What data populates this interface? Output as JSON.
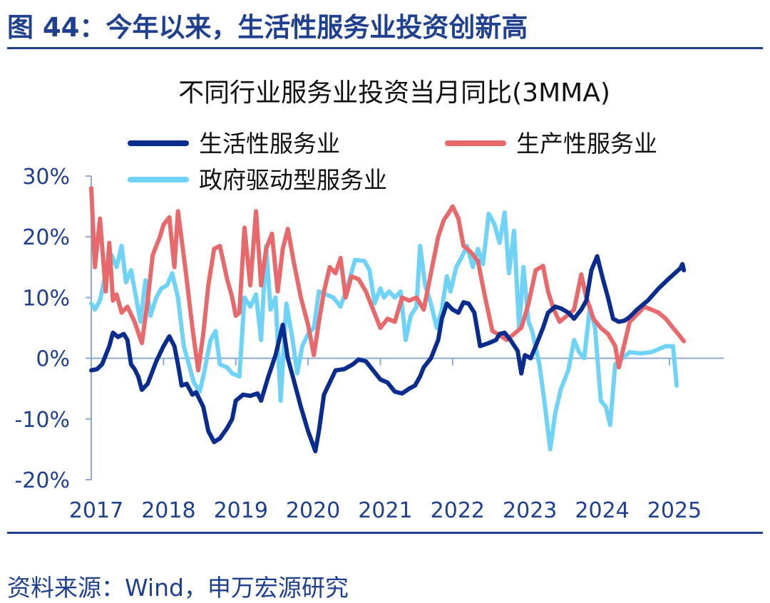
{
  "figure_title": "图 44：今年以来，生活性服务业投资创新高",
  "source": "资料来源：Wind，申万宏源研究",
  "chart_data": {
    "type": "line",
    "title": "不同行业服务业投资当月同比(3MMA)",
    "ylabel": "",
    "xlabel": "",
    "ylim": [
      -20,
      30
    ],
    "yticks": [
      30,
      20,
      10,
      0,
      -10,
      -20
    ],
    "ytick_labels": [
      "30%",
      "20%",
      "10%",
      "0%",
      "-10%",
      "-20%"
    ],
    "x_range": [
      2017,
      2025.75
    ],
    "xticks": [
      2017,
      2018,
      2019,
      2020,
      2021,
      2022,
      2023,
      2024,
      2025
    ],
    "xtick_labels": [
      "2017",
      "2018",
      "2019",
      "2020",
      "2021",
      "2022",
      "2023",
      "2024",
      "2025"
    ],
    "legend_position": "top",
    "grid": false,
    "series": [
      {
        "name": "生活性服务业",
        "color": "#0b2c8f",
        "points": [
          [
            2017.0,
            -2
          ],
          [
            2017.08,
            -1.8
          ],
          [
            2017.15,
            -1
          ],
          [
            2017.25,
            2
          ],
          [
            2017.3,
            4.2
          ],
          [
            2017.37,
            3.5
          ],
          [
            2017.45,
            4
          ],
          [
            2017.5,
            3
          ],
          [
            2017.55,
            -1
          ],
          [
            2017.6,
            -1.8
          ],
          [
            2017.65,
            -3
          ],
          [
            2017.7,
            -5.2
          ],
          [
            2017.78,
            -4.2
          ],
          [
            2017.9,
            -0.5
          ],
          [
            2018.0,
            2
          ],
          [
            2018.08,
            3.6
          ],
          [
            2018.15,
            2
          ],
          [
            2018.2,
            -1
          ],
          [
            2018.25,
            -4.5
          ],
          [
            2018.32,
            -4.2
          ],
          [
            2018.4,
            -6
          ],
          [
            2018.45,
            -5.6
          ],
          [
            2018.55,
            -8
          ],
          [
            2018.62,
            -12
          ],
          [
            2018.7,
            -13.8
          ],
          [
            2018.78,
            -13.2
          ],
          [
            2018.88,
            -11.5
          ],
          [
            2018.95,
            -10
          ],
          [
            2019.0,
            -7
          ],
          [
            2019.1,
            -6
          ],
          [
            2019.2,
            -6.2
          ],
          [
            2019.3,
            -5.8
          ],
          [
            2019.35,
            -7
          ],
          [
            2019.45,
            -3
          ],
          [
            2019.55,
            0.5
          ],
          [
            2019.65,
            5.5
          ],
          [
            2019.72,
            0
          ],
          [
            2019.8,
            -3.5
          ],
          [
            2019.9,
            -8
          ],
          [
            2020.0,
            -12
          ],
          [
            2020.1,
            -15.3
          ],
          [
            2020.15,
            -12
          ],
          [
            2020.22,
            -6
          ],
          [
            2020.3,
            -4
          ],
          [
            2020.38,
            -2
          ],
          [
            2020.5,
            -1.8
          ],
          [
            2020.62,
            -1
          ],
          [
            2020.7,
            -0.2
          ],
          [
            2020.8,
            -0.5
          ],
          [
            2020.9,
            -2
          ],
          [
            2021.0,
            -3.5
          ],
          [
            2021.1,
            -4
          ],
          [
            2021.2,
            -5.5
          ],
          [
            2021.3,
            -5.8
          ],
          [
            2021.4,
            -5
          ],
          [
            2021.48,
            -4.5
          ],
          [
            2021.55,
            -3
          ],
          [
            2021.6,
            -1.5
          ],
          [
            2021.7,
            0
          ],
          [
            2021.8,
            3
          ],
          [
            2021.85,
            6.5
          ],
          [
            2021.92,
            9
          ],
          [
            2022.0,
            8
          ],
          [
            2022.08,
            7.5
          ],
          [
            2022.15,
            9.2
          ],
          [
            2022.22,
            9
          ],
          [
            2022.3,
            7.5
          ],
          [
            2022.38,
            2
          ],
          [
            2022.5,
            2.5
          ],
          [
            2022.6,
            3
          ],
          [
            2022.65,
            4
          ],
          [
            2022.72,
            4.2
          ],
          [
            2022.8,
            3
          ],
          [
            2022.9,
            1.2
          ],
          [
            2022.95,
            -2.5
          ],
          [
            2023.0,
            0.5
          ],
          [
            2023.08,
            0
          ],
          [
            2023.15,
            2
          ],
          [
            2023.25,
            5
          ],
          [
            2023.32,
            7.5
          ],
          [
            2023.42,
            8.5
          ],
          [
            2023.5,
            8.2
          ],
          [
            2023.6,
            7.5
          ],
          [
            2023.68,
            6.5
          ],
          [
            2023.78,
            8
          ],
          [
            2023.85,
            9.5
          ],
          [
            2023.92,
            14.5
          ],
          [
            2024.0,
            16.8
          ],
          [
            2024.08,
            13
          ],
          [
            2024.15,
            10
          ],
          [
            2024.22,
            6.5
          ],
          [
            2024.3,
            6
          ],
          [
            2024.38,
            6.2
          ],
          [
            2024.45,
            6.8
          ],
          [
            2024.55,
            8
          ],
          [
            2024.7,
            9.5
          ],
          [
            2024.85,
            11.5
          ],
          [
            2025.0,
            13.2
          ],
          [
            2025.15,
            14.8
          ],
          [
            2025.18,
            15.5
          ],
          [
            2025.2,
            14.5
          ]
        ]
      },
      {
        "name": "生产性服务业",
        "color": "#e8696b",
        "points": [
          [
            2017.0,
            28
          ],
          [
            2017.05,
            15
          ],
          [
            2017.12,
            23
          ],
          [
            2017.2,
            11
          ],
          [
            2017.25,
            19
          ],
          [
            2017.3,
            9.5
          ],
          [
            2017.35,
            10.5
          ],
          [
            2017.42,
            7.5
          ],
          [
            2017.5,
            8.5
          ],
          [
            2017.6,
            6
          ],
          [
            2017.7,
            2.5
          ],
          [
            2017.78,
            9.5
          ],
          [
            2017.85,
            17
          ],
          [
            2017.95,
            20
          ],
          [
            2018.0,
            22
          ],
          [
            2018.08,
            23.2
          ],
          [
            2018.15,
            15
          ],
          [
            2018.2,
            24.2
          ],
          [
            2018.3,
            15
          ],
          [
            2018.4,
            5
          ],
          [
            2018.48,
            -2
          ],
          [
            2018.55,
            4
          ],
          [
            2018.62,
            12
          ],
          [
            2018.7,
            18
          ],
          [
            2018.78,
            18.5
          ],
          [
            2018.88,
            13
          ],
          [
            2018.95,
            10
          ],
          [
            2019.0,
            7
          ],
          [
            2019.05,
            7.5
          ],
          [
            2019.12,
            21.5
          ],
          [
            2019.2,
            12
          ],
          [
            2019.28,
            24.2
          ],
          [
            2019.35,
            12
          ],
          [
            2019.42,
            18
          ],
          [
            2019.5,
            20.5
          ],
          [
            2019.58,
            11
          ],
          [
            2019.65,
            18
          ],
          [
            2019.72,
            21.3
          ],
          [
            2019.8,
            16
          ],
          [
            2019.9,
            10
          ],
          [
            2020.0,
            5.5
          ],
          [
            2020.08,
            0.5
          ],
          [
            2020.15,
            6
          ],
          [
            2020.22,
            11
          ],
          [
            2020.3,
            15
          ],
          [
            2020.38,
            14
          ],
          [
            2020.45,
            16.5
          ],
          [
            2020.52,
            10
          ],
          [
            2020.6,
            13.5
          ],
          [
            2020.7,
            13
          ],
          [
            2020.8,
            11
          ],
          [
            2020.9,
            8
          ],
          [
            2021.0,
            5
          ],
          [
            2021.1,
            6.5
          ],
          [
            2021.2,
            6
          ],
          [
            2021.3,
            10
          ],
          [
            2021.4,
            9.5
          ],
          [
            2021.5,
            10
          ],
          [
            2021.6,
            8
          ],
          [
            2021.7,
            14
          ],
          [
            2021.8,
            20
          ],
          [
            2021.88,
            22.8
          ],
          [
            2021.95,
            24
          ],
          [
            2022.0,
            25
          ],
          [
            2022.08,
            23
          ],
          [
            2022.15,
            18.5
          ],
          [
            2022.25,
            17.5
          ],
          [
            2022.35,
            16
          ],
          [
            2022.45,
            10
          ],
          [
            2022.55,
            4.5
          ],
          [
            2022.65,
            3.8
          ],
          [
            2022.75,
            3
          ],
          [
            2022.85,
            4
          ],
          [
            2022.95,
            5
          ],
          [
            2023.05,
            9
          ],
          [
            2023.15,
            14.5
          ],
          [
            2023.25,
            15.2
          ],
          [
            2023.32,
            11
          ],
          [
            2023.4,
            8
          ],
          [
            2023.48,
            6
          ],
          [
            2023.58,
            7
          ],
          [
            2023.68,
            8
          ],
          [
            2023.78,
            13.8
          ],
          [
            2023.85,
            10
          ],
          [
            2023.95,
            6.5
          ],
          [
            2024.05,
            5
          ],
          [
            2024.15,
            4
          ],
          [
            2024.25,
            2
          ],
          [
            2024.3,
            -1.5
          ],
          [
            2024.38,
            2.5
          ],
          [
            2024.45,
            6
          ],
          [
            2024.55,
            7.2
          ],
          [
            2024.65,
            8.5
          ],
          [
            2024.75,
            8
          ],
          [
            2024.85,
            7.5
          ],
          [
            2024.95,
            6.5
          ],
          [
            2025.05,
            5
          ],
          [
            2025.12,
            4
          ],
          [
            2025.2,
            2.8
          ]
        ]
      },
      {
        "name": "政府驱动型服务业",
        "color": "#6fd3f7",
        "points": [
          [
            2017.0,
            9
          ],
          [
            2017.05,
            8
          ],
          [
            2017.12,
            9.5
          ],
          [
            2017.2,
            14
          ],
          [
            2017.28,
            17
          ],
          [
            2017.35,
            15
          ],
          [
            2017.42,
            18.5
          ],
          [
            2017.48,
            12.5
          ],
          [
            2017.55,
            14.5
          ],
          [
            2017.62,
            10
          ],
          [
            2017.68,
            6
          ],
          [
            2017.75,
            12.8
          ],
          [
            2017.82,
            7
          ],
          [
            2017.9,
            10
          ],
          [
            2017.97,
            11.5
          ],
          [
            2018.05,
            12
          ],
          [
            2018.12,
            14
          ],
          [
            2018.2,
            10
          ],
          [
            2018.28,
            2
          ],
          [
            2018.35,
            -1
          ],
          [
            2018.42,
            -4
          ],
          [
            2018.5,
            -5.5
          ],
          [
            2018.55,
            -3
          ],
          [
            2018.65,
            3
          ],
          [
            2018.72,
            4.5
          ],
          [
            2018.78,
            -1
          ],
          [
            2018.88,
            -1.5
          ],
          [
            2018.95,
            -2.5
          ],
          [
            2019.05,
            -3
          ],
          [
            2019.12,
            10
          ],
          [
            2019.2,
            8.5
          ],
          [
            2019.28,
            10.5
          ],
          [
            2019.35,
            3
          ],
          [
            2019.42,
            18.5
          ],
          [
            2019.48,
            8
          ],
          [
            2019.55,
            10
          ],
          [
            2019.62,
            -7
          ],
          [
            2019.7,
            9
          ],
          [
            2019.78,
            3.5
          ],
          [
            2019.85,
            -2.5
          ],
          [
            2019.92,
            2
          ],
          [
            2020.0,
            4
          ],
          [
            2020.08,
            5
          ],
          [
            2020.15,
            11
          ],
          [
            2020.25,
            10.5
          ],
          [
            2020.35,
            10
          ],
          [
            2020.45,
            8.5
          ],
          [
            2020.55,
            12
          ],
          [
            2020.65,
            16.2
          ],
          [
            2020.78,
            16
          ],
          [
            2020.85,
            14.5
          ],
          [
            2020.92,
            9
          ],
          [
            2021.0,
            11.5
          ],
          [
            2021.05,
            10
          ],
          [
            2021.12,
            11
          ],
          [
            2021.2,
            10
          ],
          [
            2021.28,
            11
          ],
          [
            2021.35,
            3
          ],
          [
            2021.42,
            7
          ],
          [
            2021.5,
            8.5
          ],
          [
            2021.55,
            18.5
          ],
          [
            2021.62,
            12
          ],
          [
            2021.7,
            9
          ],
          [
            2021.78,
            5
          ],
          [
            2021.85,
            8
          ],
          [
            2021.92,
            13.5
          ],
          [
            2021.97,
            11
          ],
          [
            2022.05,
            15
          ],
          [
            2022.12,
            16.5
          ],
          [
            2022.2,
            18.5
          ],
          [
            2022.28,
            15
          ],
          [
            2022.35,
            18
          ],
          [
            2022.42,
            15.5
          ],
          [
            2022.5,
            23.8
          ],
          [
            2022.58,
            22
          ],
          [
            2022.65,
            19
          ],
          [
            2022.72,
            24
          ],
          [
            2022.78,
            14
          ],
          [
            2022.85,
            21
          ],
          [
            2022.92,
            5
          ],
          [
            2022.98,
            15
          ],
          [
            2023.05,
            6
          ],
          [
            2023.1,
            4.5
          ],
          [
            2023.2,
            -1
          ],
          [
            2023.28,
            -8
          ],
          [
            2023.35,
            -15
          ],
          [
            2023.42,
            -9
          ],
          [
            2023.5,
            -5
          ],
          [
            2023.6,
            -2
          ],
          [
            2023.68,
            3
          ],
          [
            2023.75,
            1
          ],
          [
            2023.82,
            0
          ],
          [
            2023.9,
            8.5
          ],
          [
            2023.97,
            5
          ],
          [
            2024.05,
            -7
          ],
          [
            2024.12,
            -8
          ],
          [
            2024.18,
            -11
          ],
          [
            2024.25,
            -1
          ],
          [
            2024.35,
            0
          ],
          [
            2024.45,
            1
          ],
          [
            2024.6,
            0.8
          ],
          [
            2024.75,
            1
          ],
          [
            2024.85,
            1.5
          ],
          [
            2024.95,
            2
          ],
          [
            2025.05,
            2
          ],
          [
            2025.1,
            -4.5
          ]
        ]
      }
    ]
  }
}
